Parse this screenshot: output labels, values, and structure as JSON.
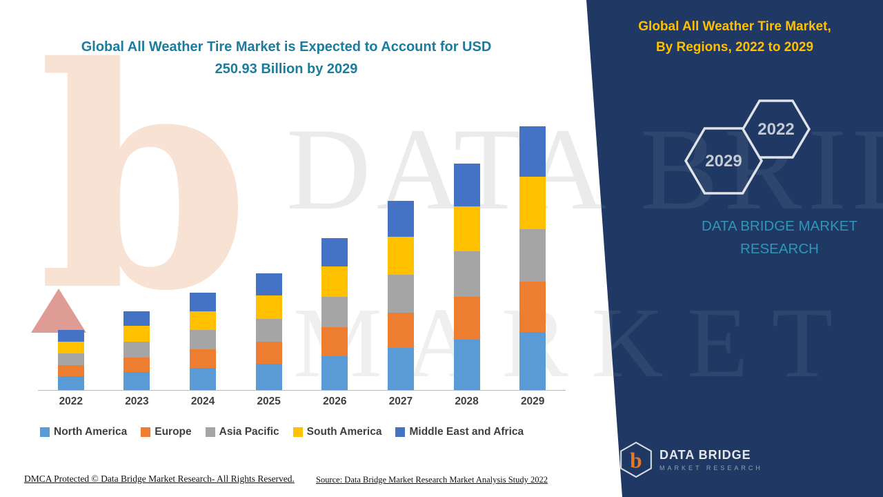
{
  "title": {
    "line1": "Global All Weather Tire Market is Expected to Account for USD",
    "line2": "250.93 Billion by 2029"
  },
  "watermark": {
    "logo_letter": "b",
    "line1": "DATA BRIDGE",
    "line2": "MARKET RESEARCH"
  },
  "side_panel": {
    "heading_line1": "Global All Weather Tire Market,",
    "heading_line2": "By Regions, 2022 to 2029",
    "hexagon_back_label": "2029",
    "hexagon_front_label": "2022",
    "brand_lines": [
      "DATA BRIDGE MARKET",
      "RESEARCH"
    ],
    "logo": {
      "letter": "b",
      "name": "DATA BRIDGE",
      "tagline": "MARKET RESEARCH"
    },
    "panel_color": "#1F3864",
    "heading_color": "#FFC000"
  },
  "footer": {
    "dmca": "DMCA Protected © Data Bridge Market Research- All Rights Reserved.",
    "source": "Source: Data Bridge Market Research Market Analysis Study 2022"
  },
  "chart_data": {
    "type": "bar",
    "stacked": true,
    "title": "Global All Weather Tire Market is Expected to Account for USD 250.93 Billion by 2029",
    "unit": "USD Billion",
    "categories": [
      "2022",
      "2023",
      "2024",
      "2025",
      "2026",
      "2027",
      "2028",
      "2029"
    ],
    "series": [
      {
        "name": "North America",
        "color": "#5B9BD5",
        "values": [
          13,
          17,
          21,
          25,
          32,
          40,
          48,
          55
        ]
      },
      {
        "name": "Europe",
        "color": "#ED7D31",
        "values": [
          11,
          14,
          18,
          21,
          28,
          34,
          41,
          48
        ]
      },
      {
        "name": "Asia Pacific",
        "color": "#A5A5A5",
        "values": [
          11,
          15,
          18,
          22,
          29,
          36,
          43,
          50
        ]
      },
      {
        "name": "South America",
        "color": "#FFC000",
        "values": [
          11,
          15,
          18,
          22,
          29,
          36,
          43,
          50
        ]
      },
      {
        "name": "Middle East and Africa",
        "color": "#4472C4",
        "values": [
          11,
          14,
          18,
          21,
          27,
          34,
          41,
          48
        ]
      }
    ],
    "totals_estimated": [
      57,
      75,
      93,
      111,
      145,
      180,
      216,
      251
    ],
    "labeled_value_2029": 250.93,
    "ylim": [
      0,
      260
    ],
    "grid": false,
    "legend_position": "bottom"
  }
}
